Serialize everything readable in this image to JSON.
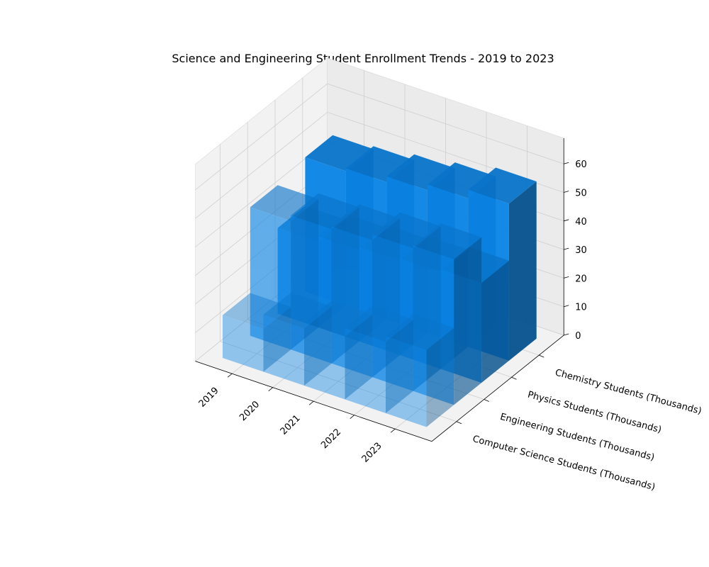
{
  "chart_data": {
    "type": "bar",
    "title": "Science and Engineering Student Enrollment Trends - 2019 to 2023",
    "categories": [
      "2019",
      "2020",
      "2021",
      "2022",
      "2023"
    ],
    "series": [
      {
        "name": "Computer Science Students (Thousands)",
        "values": [
          15,
          20,
          22,
          25,
          27
        ]
      },
      {
        "name": "Engineering Students (Thousands)",
        "values": [
          45,
          47,
          48,
          50,
          51
        ]
      },
      {
        "name": "Physics Students (Thousands)",
        "values": [
          30,
          32,
          33,
          34,
          35
        ]
      },
      {
        "name": "Chemistry Students (Thousands)",
        "values": [
          47,
          48,
          50,
          52,
          55
        ]
      }
    ],
    "z_ticks": [
      "0",
      "10",
      "20",
      "30",
      "40",
      "50",
      "60"
    ],
    "zlim": [
      0,
      60
    ],
    "grid": true,
    "colors": {
      "base": "#0a84e6",
      "pane": "#f2f2f2",
      "pane_right": "#ebebeb",
      "grid": "#cfcfcf"
    }
  }
}
